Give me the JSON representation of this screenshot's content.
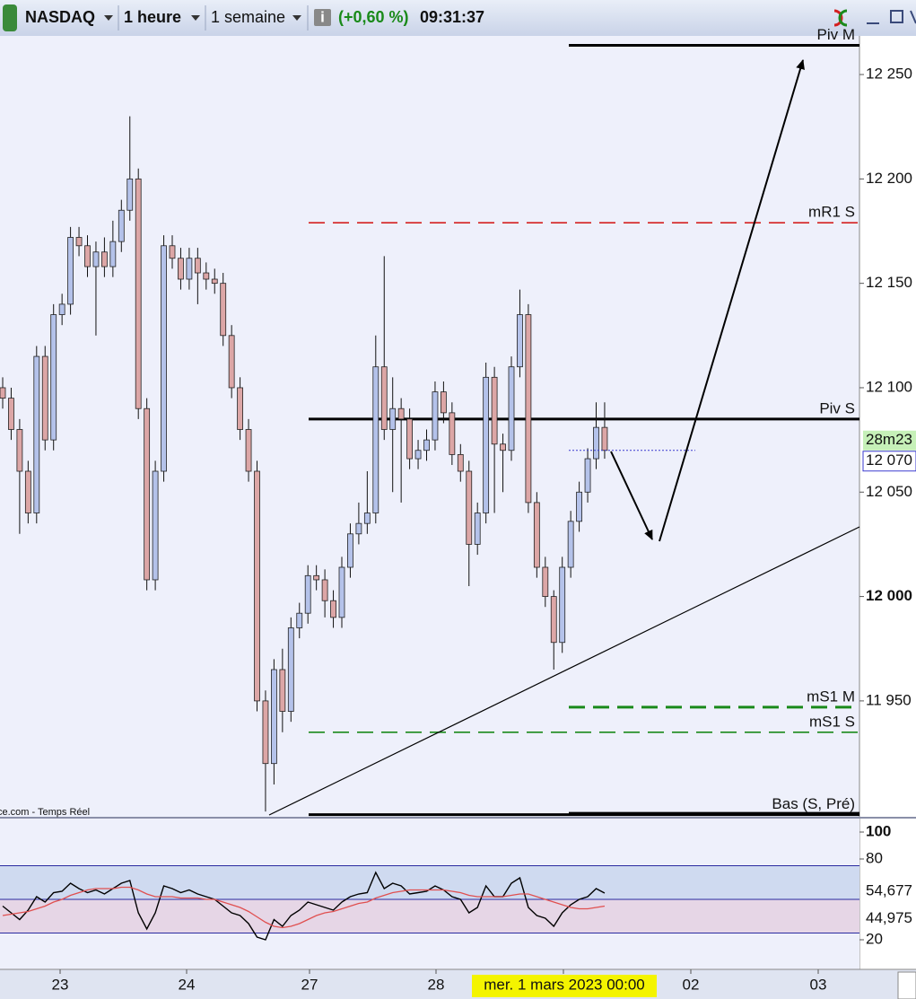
{
  "header": {
    "symbol": "NASDAQ",
    "interval": "1 heure",
    "range": "1 semaine",
    "change": "(+0,60 %)",
    "time": "09:31:37"
  },
  "chart_data": [
    {
      "type": "candlestick",
      "source": "ce.com - Temps Réel",
      "open": [
        12100,
        12095,
        12080,
        12060,
        12040,
        12115,
        12075,
        12135,
        12140,
        12172,
        12168,
        12158,
        12165,
        12158,
        12170,
        12185,
        12200,
        12090,
        12008,
        12060,
        12168,
        12162,
        12152,
        12162,
        12155,
        12152,
        12150,
        12125,
        12100,
        12080,
        12060,
        11950,
        11920,
        11965,
        11945,
        11985,
        11992,
        12010,
        12008,
        11998,
        11990,
        12014,
        12030,
        12035,
        12040,
        12110,
        12080,
        12090,
        12085,
        12066,
        12070,
        12075,
        12098,
        12088,
        12068,
        12060,
        12025,
        12040,
        12105,
        12073,
        12070,
        12110,
        12135,
        12045,
        12014,
        12000,
        11978,
        12014,
        12036,
        12050,
        12066,
        12081
      ],
      "high": [
        12105,
        12100,
        12085,
        12065,
        12120,
        12120,
        12140,
        12145,
        12177,
        12177,
        12173,
        12170,
        12172,
        12180,
        12190,
        12230,
        12205,
        12095,
        12065,
        12173,
        12173,
        12167,
        12167,
        12167,
        12160,
        12157,
        12155,
        12130,
        12105,
        12085,
        12065,
        11955,
        11970,
        11975,
        11990,
        11997,
        12015,
        12015,
        12013,
        12003,
        12019,
        12035,
        12045,
        12060,
        12125,
        12163,
        12105,
        12095,
        12090,
        12075,
        12080,
        12103,
        12103,
        12093,
        12073,
        12065,
        12045,
        12112,
        12110,
        12078,
        12115,
        12147,
        12140,
        12050,
        12019,
        12003,
        12019,
        12041,
        12055,
        12071,
        12093,
        12093
      ],
      "low": [
        12090,
        12075,
        12030,
        12035,
        12035,
        12070,
        12070,
        12130,
        12135,
        12163,
        12153,
        12125,
        12153,
        12153,
        12165,
        12180,
        12085,
        12003,
        12003,
        12055,
        12157,
        12147,
        12147,
        12140,
        12147,
        12145,
        12120,
        12095,
        12075,
        12055,
        11945,
        11897,
        11910,
        11935,
        11940,
        11980,
        11987,
        12003,
        11990,
        11985,
        11985,
        12009,
        12025,
        12030,
        12035,
        12075,
        12050,
        12045,
        12061,
        12061,
        12065,
        12070,
        12083,
        12063,
        12055,
        12005,
        12020,
        12035,
        12040,
        12050,
        12065,
        12105,
        12040,
        12009,
        11995,
        11965,
        11973,
        12009,
        12031,
        12045,
        12061,
        12066
      ],
      "close": [
        12095,
        12080,
        12060,
        12040,
        12115,
        12075,
        12135,
        12140,
        12172,
        12168,
        12158,
        12165,
        12158,
        12170,
        12185,
        12200,
        12090,
        12008,
        12060,
        12168,
        12162,
        12152,
        12162,
        12155,
        12152,
        12150,
        12125,
        12100,
        12080,
        12060,
        11950,
        11920,
        11965,
        11945,
        11985,
        11992,
        12010,
        12008,
        11998,
        11990,
        12014,
        12030,
        12035,
        12040,
        12110,
        12080,
        12090,
        12085,
        12066,
        12070,
        12075,
        12098,
        12088,
        12068,
        12060,
        12025,
        12040,
        12105,
        12073,
        12070,
        12110,
        12135,
        12045,
        12014,
        12000,
        11978,
        12014,
        12036,
        12050,
        12066,
        12081,
        12070
      ],
      "up_color": "#b4c2ea",
      "down_color": "#dca6a6",
      "ylim": [
        11894.5,
        12268.5
      ],
      "yticks": [
        {
          "value": 12250,
          "label": "12 250"
        },
        {
          "value": 12200,
          "label": "12 200"
        },
        {
          "value": 12150,
          "label": "12 150"
        },
        {
          "value": 12100,
          "label": "12 100"
        },
        {
          "value": 12050,
          "label": "12 050"
        },
        {
          "value": 12000,
          "label": "12 000"
        },
        {
          "value": 11950,
          "label": "11 950"
        }
      ],
      "x_labels": [
        "23",
        "24",
        "27",
        "28",
        "mer. 1 mars 2023 00:00",
        "02",
        "03"
      ],
      "levels": [
        {
          "name": "Piv M",
          "value": 12264,
          "color": "#000000",
          "style": "solid"
        },
        {
          "name": "mR1 S",
          "value": 12179,
          "color": "#d42020",
          "style": "dashed"
        },
        {
          "name": "Piv S",
          "value": 12085,
          "color": "#000000",
          "style": "solid"
        },
        {
          "name": "mS1 M",
          "value": 11947,
          "color": "#1a8a1a",
          "style": "dashed"
        },
        {
          "name": "mS1 S",
          "value": 11935,
          "color": "#1a8a1a",
          "style": "dashed"
        },
        {
          "name": "Bas (S, Pré)",
          "value": 11895.5,
          "color": "#000000",
          "style": "solid"
        }
      ],
      "last_price": {
        "value": 12070,
        "label": "12 070"
      },
      "countdown": "28m23"
    },
    {
      "type": "line",
      "series": [
        {
          "color": "#000000",
          "last_label": "54,677",
          "values": [
            45,
            40,
            35,
            42,
            52,
            48,
            55,
            56,
            62,
            58,
            55,
            57,
            54,
            58,
            62,
            64,
            40,
            28,
            40,
            60,
            58,
            55,
            57,
            54,
            52,
            50,
            45,
            40,
            38,
            32,
            22,
            20,
            35,
            30,
            38,
            42,
            48,
            46,
            44,
            42,
            48,
            52,
            54,
            55,
            70,
            58,
            62,
            60,
            54,
            55,
            56,
            60,
            57,
            52,
            50,
            40,
            44,
            60,
            52,
            52,
            62,
            66,
            44,
            38,
            36,
            30,
            40,
            46,
            50,
            52,
            58,
            54.677
          ]
        },
        {
          "color": "#e05050",
          "last_label": "44,975",
          "values": [
            38,
            39,
            40,
            41,
            43,
            45,
            48,
            50,
            53,
            55,
            57,
            58,
            58,
            58,
            59,
            59,
            57,
            54,
            52,
            52,
            52,
            51,
            51,
            51,
            50,
            50,
            48,
            46,
            44,
            41,
            37,
            33,
            30,
            29,
            30,
            32,
            35,
            38,
            40,
            41,
            43,
            45,
            47,
            48,
            51,
            53,
            55,
            56,
            57,
            57,
            57,
            57,
            57,
            56,
            55,
            53,
            52,
            52,
            52,
            52,
            53,
            54,
            54,
            52,
            50,
            48,
            46,
            44,
            43,
            43,
            44,
            44.975
          ]
        }
      ],
      "ylim": [
        -2,
        110
      ],
      "yticks": [
        100,
        80,
        20
      ],
      "levels": [
        75,
        50,
        25
      ]
    }
  ]
}
